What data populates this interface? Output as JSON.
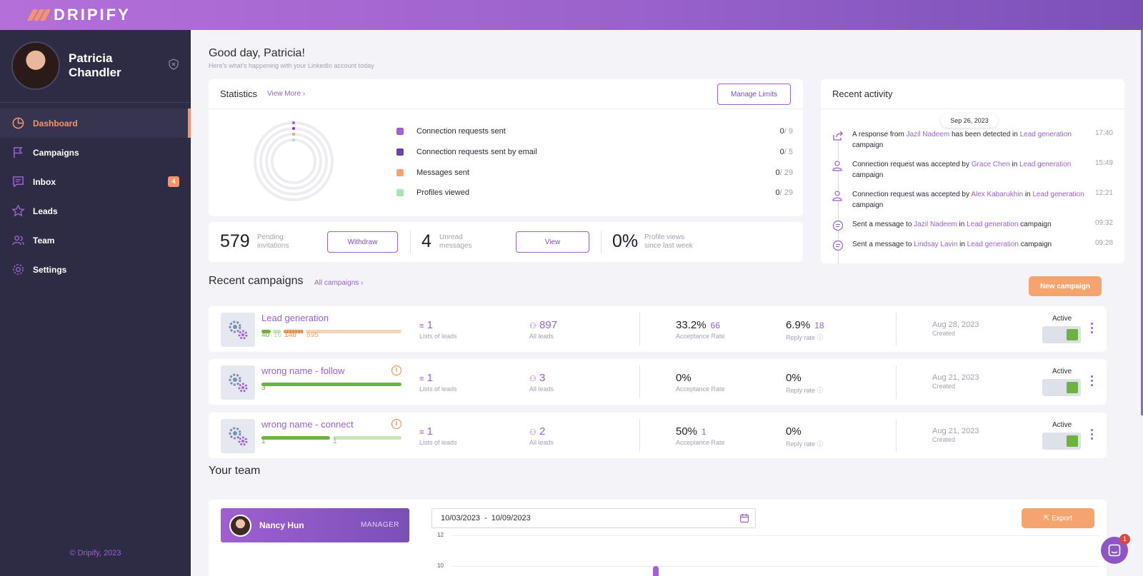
{
  "app": {
    "brand": "DRIPIFY"
  },
  "sidebar": {
    "user_name": "Patricia Chandler",
    "items": [
      {
        "label": "Dashboard",
        "icon": "pie-chart-icon"
      },
      {
        "label": "Campaigns",
        "icon": "flag-icon"
      },
      {
        "label": "Inbox",
        "icon": "inbox-icon",
        "badge": "4"
      },
      {
        "label": "Leads",
        "icon": "star-icon"
      },
      {
        "label": "Team",
        "icon": "team-icon"
      },
      {
        "label": "Settings",
        "icon": "gear-icon"
      }
    ],
    "footer": "© Dripify, 2023"
  },
  "header": {
    "greeting": "Good day, Patricia!",
    "subtitle": "Here's what's happening with your LinkedIn account today"
  },
  "statistics": {
    "title": "Statistics",
    "view_more": "View More",
    "manage_limits": "Manage Limits",
    "rows": [
      {
        "label": "Connection requests sent",
        "value": "0",
        "limit": "/ 9",
        "color": "#a45ed6"
      },
      {
        "label": "Connection requests sent by email",
        "value": "0",
        "limit": "/ 5",
        "color": "#6b46a8"
      },
      {
        "label": "Messages sent",
        "value": "0",
        "limit": "/ 29",
        "color": "#f5a46d"
      },
      {
        "label": "Profiles viewed",
        "value": "0",
        "limit": "/ 29",
        "color": "#a9e3b9"
      }
    ]
  },
  "counts": {
    "pending": {
      "value": "579",
      "label_1": "Pending",
      "label_2": "invitations",
      "button": "Withdraw"
    },
    "unread": {
      "value": "4",
      "label_1": "Unread",
      "label_2": "messages",
      "button": "View"
    },
    "views": {
      "value": "0%",
      "label_1": "Profile views",
      "label_2": "since last week"
    }
  },
  "activity": {
    "title": "Recent activity",
    "date": "Sep 26, 2023",
    "items": [
      {
        "pre": "A response from ",
        "link1": "Jazil Nadeem",
        "mid": " has been detected in ",
        "link2": "Lead generation",
        "post": " campaign",
        "time": "17:40",
        "icon": "share-icon"
      },
      {
        "pre": "Connection request was accepted by ",
        "link1": "Grace Chen",
        "mid": " in ",
        "link2": "Lead generation",
        "post": " campaign",
        "time": "15:49",
        "icon": "user-check-icon"
      },
      {
        "pre": "Connection request was accepted by ",
        "link1": "Alex Kabarukhin",
        "mid": " in ",
        "link2": "Lead generation",
        "post": " campaign",
        "time": "12:21",
        "icon": "user-check-icon"
      },
      {
        "pre": "Sent a message to ",
        "link1": "Jazil Nadeem",
        "mid": " in ",
        "link2": "Lead generation",
        "post": " campaign",
        "time": "09:32",
        "icon": "message-icon"
      },
      {
        "pre": "Sent a message to ",
        "link1": "Lindsay Lavin",
        "mid": " in ",
        "link2": "Lead generation",
        "post": " campaign",
        "time": "09:28",
        "icon": "message-icon"
      }
    ]
  },
  "campaigns": {
    "title": "Recent campaigns",
    "all_link": "All campaigns",
    "new_button": "New campaign",
    "lists_label": "Lists of leads",
    "leads_label": "All leads",
    "acc_label": "Acceptance Rate",
    "reply_label": "Reply rate",
    "created_label": "Created",
    "active_label": "Active",
    "items": [
      {
        "name": "Lead generation",
        "lists": "1",
        "leads": "897",
        "acc": "33.2%",
        "acc_n": "66",
        "reply": "6.9%",
        "reply_n": "18",
        "date": "Aug 28, 2023",
        "n1": "40",
        "n2": "16",
        "n3": "146",
        "n4": "695"
      },
      {
        "name": "wrong name - follow",
        "lists": "1",
        "leads": "3",
        "acc": "0%",
        "acc_n": "",
        "reply": "0%",
        "reply_n": "",
        "date": "Aug 21, 2023",
        "n1": "3"
      },
      {
        "name": "wrong name - connect",
        "lists": "1",
        "leads": "2",
        "acc": "50%",
        "acc_n": "1",
        "reply": "0%",
        "reply_n": "",
        "date": "Aug 21, 2023",
        "n1": "1",
        "n2": "1"
      }
    ]
  },
  "team": {
    "title": "Your team",
    "member": {
      "name": "Nancy Hun",
      "role": "MANAGER"
    },
    "date_from": "10/03/2023",
    "date_to": "10/09/2023",
    "export": "Export",
    "y_ticks": [
      "12",
      "10"
    ]
  },
  "chat": {
    "badge": "1"
  }
}
